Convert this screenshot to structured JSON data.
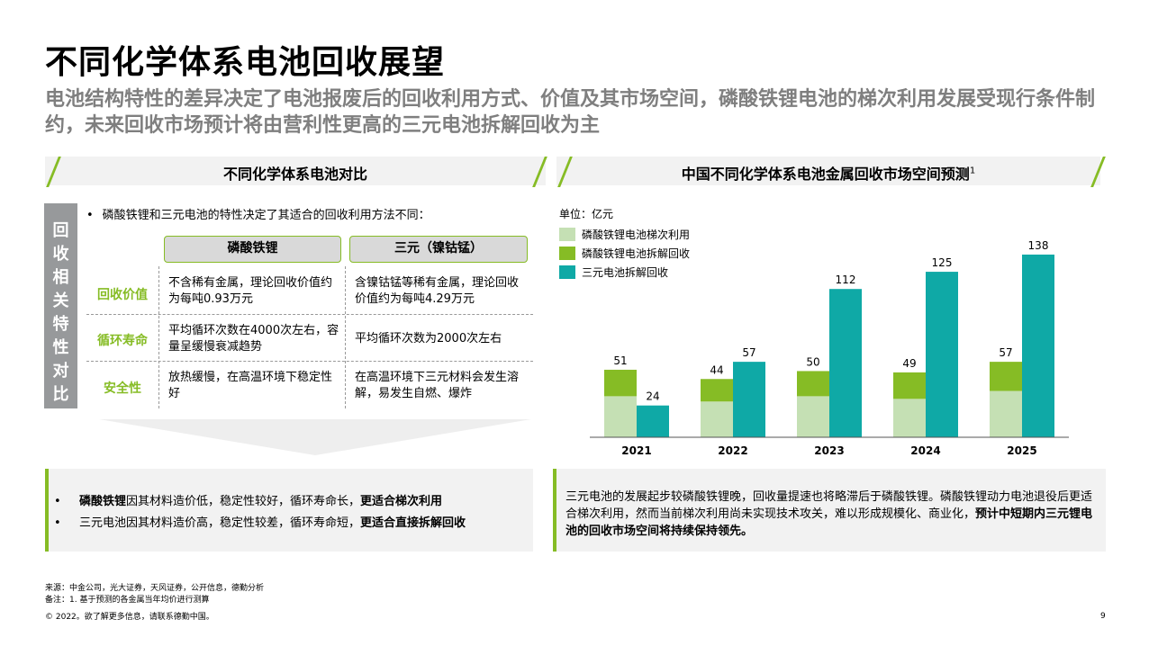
{
  "page": {
    "title": "不同化学体系电池回收展望",
    "subtitle": "电池结构特性的差异决定了电池报废后的回收利用方式、价值及其市场空间，磷酸铁锂电池的梯次利用发展受现行条件制约，未来回收市场预计将由营利性更高的三元电池拆解回收为主"
  },
  "left": {
    "header": "不同化学体系电池对比",
    "vertical_label": [
      "回",
      "收",
      "相",
      "关",
      "特",
      "性",
      "对",
      "比"
    ],
    "intro": "磷酸铁锂和三元电池的特性决定了其适合的回收利用方法不同：",
    "columns": [
      "磷酸铁锂",
      "三元（镍钴锰）"
    ],
    "rows": [
      {
        "label": "回收价值",
        "lfp": "不含稀有金属，理论回收价值约为每吨0.93万元",
        "ncm": "含镍钴锰等稀有金属，理论回收价值约为每吨4.29万元"
      },
      {
        "label": "循环寿命",
        "lfp": "平均循环次数在4000次左右，容量呈缓慢衰减趋势",
        "ncm": "平均循环次数为2000次左右"
      },
      {
        "label": "安全性",
        "lfp": "放热缓慢，在高温环境下稳定性好",
        "ncm": "在高温环境下三元材料会发生溶解，易发生自燃、爆炸"
      }
    ],
    "conclusion": [
      {
        "bold": "磷酸铁锂",
        "text": "因其材料造价低，稳定性较好，循环寿命长，",
        "bold2": "更适合梯次利用"
      },
      {
        "bold": "",
        "text": "三元电池因其材料造价高，稳定性较差，循环寿命短，",
        "bold2": "更适合直接拆解回收"
      }
    ]
  },
  "right": {
    "header": "中国不同化学体系电池金属回收市场空间预测",
    "header_sup": "1",
    "conclusion_plain": "三元电池的发展起步较磷酸铁锂晚，回收量提速也将略滞后于磷酸铁锂。磷酸铁锂动力电池退役后更适合梯次利用，然而当前梯次利用尚未实现技术攻关，难以形成规模化、商业化，",
    "conclusion_bold": "预计中短期内三元锂电池的回收市场空间将持续保持领先。"
  },
  "chart_data": {
    "type": "bar",
    "unit_label": "单位：亿元",
    "categories": [
      "2021",
      "2022",
      "2023",
      "2024",
      "2025"
    ],
    "stacks": [
      {
        "name": "磷酸铁锂",
        "total_labels": [
          51,
          44,
          50,
          49,
          57
        ],
        "series": [
          {
            "name": "磷酸铁锂电池梯次利用",
            "values": [
              31,
              27,
              31,
              29,
              35
            ],
            "color": "#c5e0b4"
          },
          {
            "name": "磷酸铁锂电池拆解回收",
            "values": [
              20,
              17,
              19,
              20,
              22
            ],
            "color": "#86bc25"
          }
        ]
      },
      {
        "name": "三元",
        "total_labels": [
          24,
          57,
          112,
          125,
          138
        ],
        "series": [
          {
            "name": "三元电池拆解回收",
            "values": [
              24,
              57,
              112,
              125,
              138
            ],
            "color": "#0fa9a6"
          }
        ]
      }
    ],
    "ylim": [
      0,
      140
    ],
    "grid": false,
    "legend": "top-left"
  },
  "footer": {
    "source": "来源：中金公司，光大证券，天风证券，公开信息，德勤分析",
    "note": "备注：1. 基于预测的各金属当年均价进行测算",
    "copyright": "© 2022。欲了解更多信息，请联系德勤中国。",
    "page_number": "9"
  }
}
